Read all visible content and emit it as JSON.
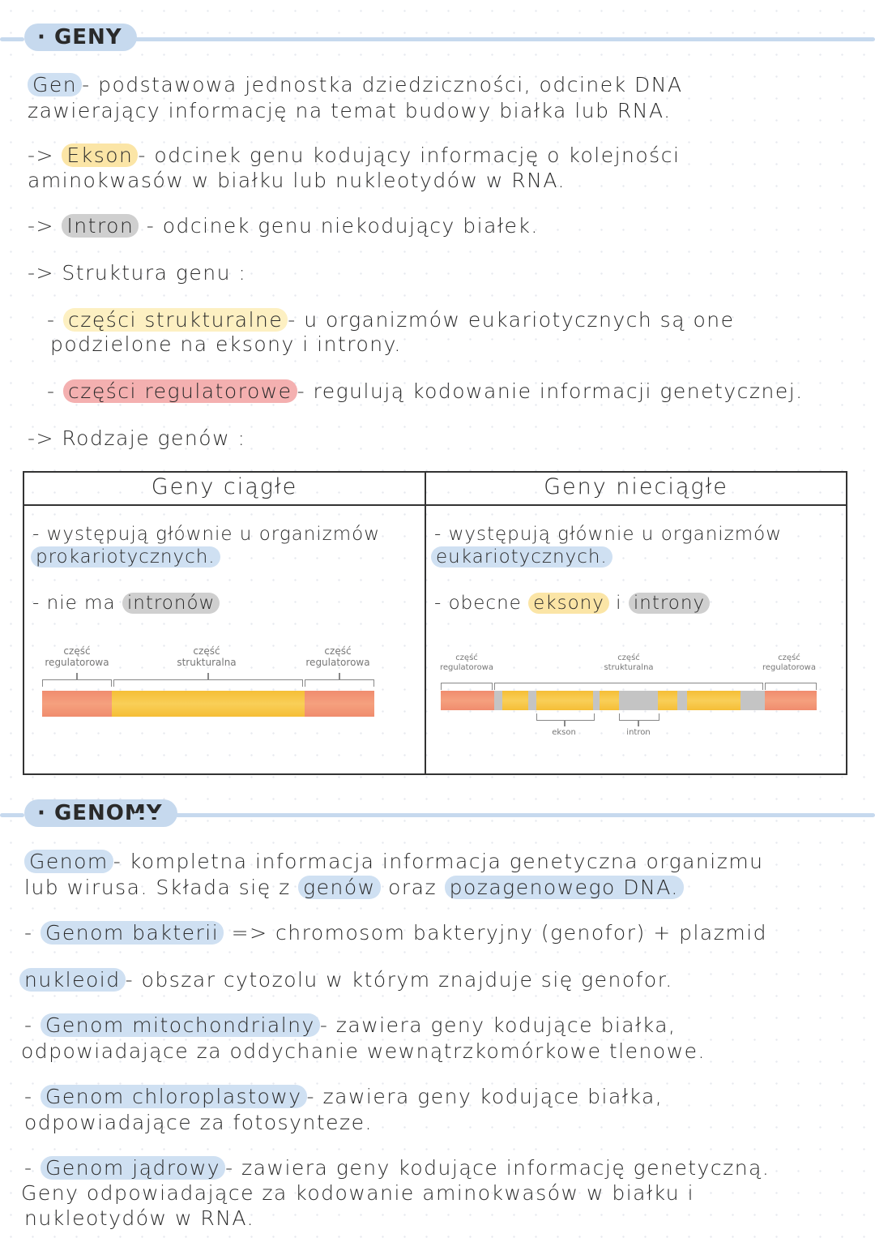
{
  "section1": {
    "title": "GENY",
    "gen_term": "Gen",
    "gen_def_1": "- podstawowa jednostka dziedziczności, odcinek DNA",
    "gen_def_2": "zawierający informację na temat budowy białka lub RNA.",
    "ekson_arrow": "->",
    "ekson_term": "Ekson",
    "ekson_def_1": "- odcinek genu kodujący informację o kolejności",
    "ekson_def_2": "aminokwasów w białku lub nukleotydów w RNA.",
    "intron_arrow": "->",
    "intron_term": "Intron",
    "intron_def": "- odcinek genu niekodujący białek.",
    "struktura_arrow": "->",
    "struktura_title": "Struktura genu :",
    "czesci_str_dash": "-",
    "czesci_str_term": "części strukturalne",
    "czesci_str_def_1": "- u organizmów eukariotycznych są one",
    "czesci_str_def_2": "podzielone na eksony i introny.",
    "czesci_reg_dash": "-",
    "czesci_reg_term": "części regulatorowe",
    "czesci_reg_def": "- regulują kodowanie informacji genetycznej.",
    "rodzaje_arrow": "->",
    "rodzaje_title": "Rodzaje genów :"
  },
  "table": {
    "col1_header": "Geny ciągłe",
    "col2_header": "Geny nieciągłe",
    "col1_item1_a": "- występują głównie u organizmów",
    "col1_item1_b": "prokariotycznych.",
    "col1_item2_pre": "- nie ma",
    "col1_item2_term": "intronów",
    "col2_item1_a": "- występują głównie u organizmów",
    "col2_item1_b": "eukariotycznych.",
    "col2_item2_pre": "- obecne",
    "col2_item2_term1": "eksony",
    "col2_item2_mid": "i",
    "col2_item2_term2": "introny",
    "diagram1": {
      "label_left": "część regulatorowa",
      "label_mid": "część strukturalna",
      "label_right": "część regulatorowa"
    },
    "diagram2": {
      "label_left": "część regulatorowa",
      "label_mid": "część strukturalna",
      "label_right": "część regulatorowa",
      "label_ekson": "ekson",
      "label_intron": "intron"
    }
  },
  "section2": {
    "title": "GENOMY",
    "genom_term": "Genom",
    "genom_def_1": "- kompletna informacja informacja genetyczna organizmu",
    "genom_def_2a": "lub wirusa. Składa się z",
    "genom_def_2b": "genów",
    "genom_def_2c": "oraz",
    "genom_def_2d": "pozagenowego DNA.",
    "bakterii_dash": "-",
    "bakterii_term": "Genom bakterii",
    "bakterii_def": "=> chromosom bakteryjny (genofor) + plazmid",
    "nukleoid_term": "nukleoid",
    "nukleoid_def": "- obszar cytozolu w którym znajduje się genofor.",
    "mito_dash": "-",
    "mito_term": "Genom mitochondrialny",
    "mito_def_1": "- zawiera geny kodujące białka,",
    "mito_def_2": "odpowiadające za oddychanie wewnątrzkomórkowe tlenowe.",
    "chloro_dash": "-",
    "chloro_term": "Genom chloroplastowy",
    "chloro_def_1": "- zawiera geny kodujące białka,",
    "chloro_def_2": "odpowiadające za fotosynteze.",
    "jadr_dash": "-",
    "jadr_term": "Genom jądrowy",
    "jadr_def_1": "- zawiera geny kodujące informację genetyczną.",
    "jadr_def_2": "Geny odpowiadające za kodowanie aminokwasów w białku i",
    "jadr_def_3": "nukleotydów w RNA."
  },
  "colors": {
    "blue_highlight": "#cfe0f2",
    "yellow_highlight": "#fbe5a6",
    "gray_highlight": "#cfcfcf",
    "red_highlight": "#f4b0b0",
    "regulatory_segment": "#f08c6e",
    "structural_segment": "#f7c640",
    "intron_segment": "#c4c4c4"
  }
}
